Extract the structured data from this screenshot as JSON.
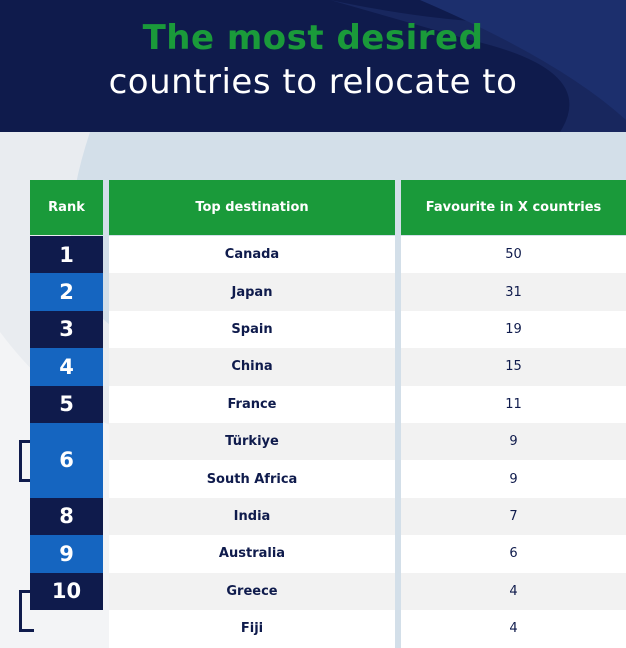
{
  "title": {
    "line1": "The most desired",
    "line2": "countries to relocate to"
  },
  "colors": {
    "navy": "#0f1b4c",
    "blue": "#1565c0",
    "green": "#1a9a3a",
    "row_white": "#ffffff",
    "row_grey": "#f2f2f2"
  },
  "chart_data": {
    "type": "table",
    "columns": [
      "Rank",
      "Top destination",
      "Favourite in X countries"
    ],
    "rows": [
      {
        "rank": "1",
        "country": "Canada",
        "count": "50"
      },
      {
        "rank": "2",
        "country": "Japan",
        "count": "31"
      },
      {
        "rank": "3",
        "country": "Spain",
        "count": "19"
      },
      {
        "rank": "4",
        "country": "China",
        "count": "15"
      },
      {
        "rank": "5",
        "country": "France",
        "count": "11"
      },
      {
        "rank": "6",
        "country": "Türkiye",
        "count": "9"
      },
      {
        "rank": "6",
        "country": "South Africa",
        "count": "9"
      },
      {
        "rank": "8",
        "country": "India",
        "count": "7"
      },
      {
        "rank": "9",
        "country": "Australia",
        "count": "6"
      },
      {
        "rank": "10",
        "country": "Greece",
        "count": "4"
      },
      {
        "rank": "10",
        "country": "Fiji",
        "count": "4"
      }
    ]
  }
}
